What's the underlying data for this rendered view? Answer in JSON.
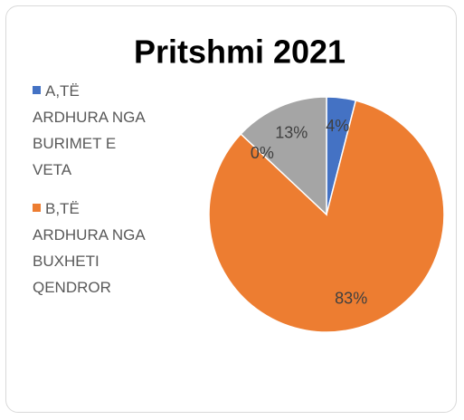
{
  "chart_data": {
    "type": "pie",
    "title": "Pritshmi 2021",
    "categories": [
      "A,TË ARDHURA NGA BURIMET E VETA",
      "B,TË ARDHURA NGA BUXHETI QENDROR",
      null,
      null
    ],
    "values": [
      4,
      83,
      0,
      13
    ],
    "value_labels": [
      "4%",
      "83%",
      "0%",
      "13%"
    ],
    "colors": [
      "#4472c4",
      "#ed7d31",
      "#a5a5a5",
      "#a5a5a5"
    ]
  }
}
